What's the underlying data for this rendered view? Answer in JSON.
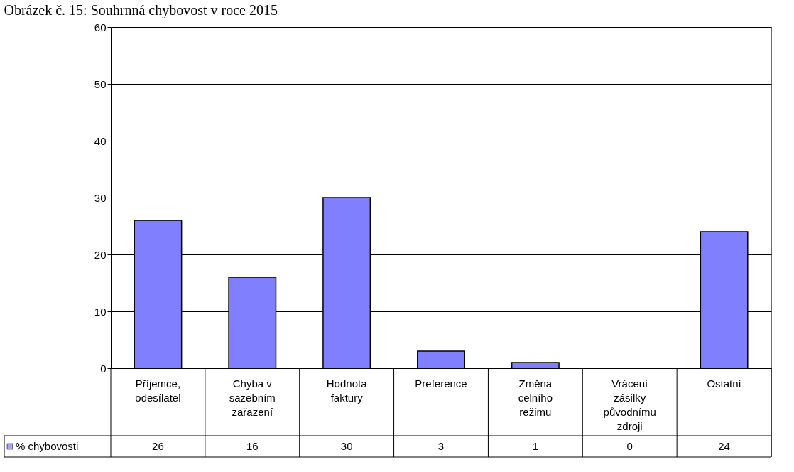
{
  "chart_data": {
    "type": "bar",
    "title": "Obrázek č. 15: Souhrnná chybovost v roce 2015",
    "categories": [
      "Příjemce, odesílatel",
      "Chyba v sazebním zařazení",
      "Hodnota faktury",
      "Preference",
      "Změna celního režimu",
      "Vrácení zásilky původnímu zdroji",
      "Ostatní"
    ],
    "series": [
      {
        "name": "% chybovosti",
        "color": "#8080ff",
        "values": [
          26,
          16,
          30,
          3,
          1,
          0,
          24
        ]
      }
    ],
    "ylim": [
      0,
      60
    ],
    "yticks": [
      0,
      10,
      20,
      30,
      40,
      50,
      60
    ],
    "grid": "y",
    "data_labels": true,
    "legend": "bottom left"
  }
}
